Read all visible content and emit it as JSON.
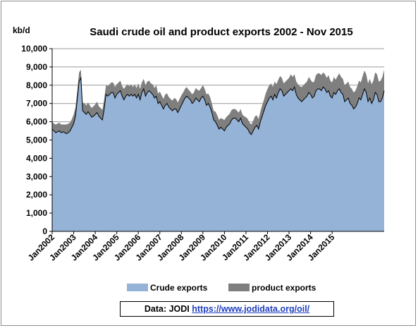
{
  "chart_data": {
    "type": "area",
    "title": "Saudi crude oil and product exports 2002 - Nov 2015",
    "ylabel": "kb/d",
    "ylim": [
      0,
      10000
    ],
    "yticks": [
      "0",
      "1,000",
      "2,000",
      "3,000",
      "4,000",
      "5,000",
      "6,000",
      "7,000",
      "8,000",
      "9,000",
      "10,000"
    ],
    "xticks": [
      "Jan2002",
      "Jan2003",
      "Jan2004",
      "Jan2005",
      "Jan2006",
      "Jan2007",
      "Jan2008",
      "Jan2009",
      "Jan2010",
      "Jan2011",
      "Jan2012",
      "Jan2013",
      "Jan2014",
      "Jan2015"
    ],
    "stacked": true,
    "grid": true,
    "legend_position": "bottom",
    "colors": {
      "crude": "#95b3d7",
      "product": "#7f7f7f",
      "crude_edge": "#000000"
    },
    "series": [
      {
        "name": "Crude exports",
        "values": [
          5600,
          5500,
          5400,
          5450,
          5500,
          5400,
          5450,
          5400,
          5350,
          5400,
          5500,
          5700,
          5900,
          6300,
          7200,
          8200,
          8400,
          6600,
          6500,
          6400,
          6550,
          6400,
          6250,
          6300,
          6400,
          6500,
          6300,
          6200,
          6100,
          6700,
          7500,
          7400,
          7500,
          7600,
          7600,
          7300,
          7500,
          7600,
          7700,
          7400,
          7200,
          7400,
          7500,
          7400,
          7500,
          7400,
          7500,
          7300,
          7500,
          7200,
          7600,
          7800,
          7400,
          7600,
          7700,
          7600,
          7500,
          7300,
          7400,
          7000,
          7100,
          6900,
          6700,
          6900,
          7000,
          6800,
          6700,
          6600,
          6700,
          6700,
          6500,
          6700,
          6900,
          7100,
          7300,
          7400,
          7300,
          7200,
          7000,
          7100,
          7300,
          7200,
          7100,
          7300,
          7400,
          7200,
          6900,
          7000,
          6800,
          6500,
          6100,
          6000,
          5800,
          5600,
          5700,
          5600,
          5500,
          5700,
          5800,
          5900,
          6100,
          6200,
          6200,
          6100,
          6000,
          6200,
          5900,
          5800,
          5700,
          5600,
          5400,
          5300,
          5500,
          5700,
          5800,
          5600,
          6000,
          6300,
          6600,
          6900,
          7100,
          7300,
          7400,
          7200,
          7500,
          7300,
          7600,
          7800,
          7700,
          7400,
          7500,
          7600,
          7700,
          7800,
          7700,
          7900,
          7500,
          7300,
          7200,
          7100,
          7200,
          7300,
          7400,
          7600,
          7500,
          7300,
          7400,
          7700,
          7800,
          7800,
          7700,
          7900,
          7800,
          7600,
          7700,
          7400,
          7300,
          7600,
          7500,
          7700,
          7800,
          7600,
          7500,
          7100,
          7200,
          7300,
          7000,
          6900,
          6700,
          6800,
          7000,
          7300,
          7200,
          7500,
          7800,
          7600,
          7100,
          7300,
          7000,
          7200,
          7600,
          7500,
          7100,
          7100,
          7300,
          7700
        ]
      },
      {
        "name": "product exports",
        "values": [
          400,
          400,
          450,
          450,
          450,
          450,
          400,
          450,
          500,
          500,
          450,
          450,
          500,
          500,
          500,
          500,
          450,
          450,
          500,
          500,
          500,
          500,
          500,
          550,
          550,
          600,
          550,
          550,
          550,
          550,
          500,
          550,
          550,
          550,
          550,
          600,
          550,
          550,
          550,
          550,
          600,
          550,
          550,
          550,
          550,
          500,
          550,
          550,
          600,
          600,
          550,
          550,
          600,
          600,
          550,
          500,
          550,
          550,
          600,
          550,
          550,
          550,
          550,
          600,
          550,
          550,
          550,
          550,
          600,
          550,
          550,
          550,
          550,
          500,
          500,
          500,
          450,
          450,
          500,
          500,
          550,
          550,
          600,
          550,
          600,
          600,
          600,
          550,
          550,
          500,
          500,
          550,
          550,
          500,
          500,
          550,
          600,
          550,
          550,
          550,
          550,
          500,
          500,
          500,
          500,
          500,
          500,
          500,
          550,
          550,
          550,
          550,
          550,
          600,
          550,
          550,
          550,
          600,
          600,
          650,
          700,
          700,
          700,
          700,
          700,
          750,
          700,
          700,
          700,
          700,
          700,
          700,
          700,
          800,
          750,
          700,
          700,
          750,
          750,
          800,
          800,
          800,
          800,
          850,
          800,
          850,
          800,
          850,
          850,
          850,
          850,
          800,
          800,
          800,
          850,
          850,
          850,
          850,
          800,
          800,
          850,
          850,
          850,
          900,
          900,
          900,
          900,
          900,
          900,
          900,
          950,
          950,
          950,
          1000,
          1000,
          1000,
          1000,
          1050,
          1050,
          1050,
          1100,
          1100,
          1100,
          1150,
          1150,
          1150,
          1200,
          1200,
          1200,
          1200
        ]
      }
    ],
    "source_label": "Data: JODI",
    "source_url": "https://www.jodidata.org/oil/"
  }
}
